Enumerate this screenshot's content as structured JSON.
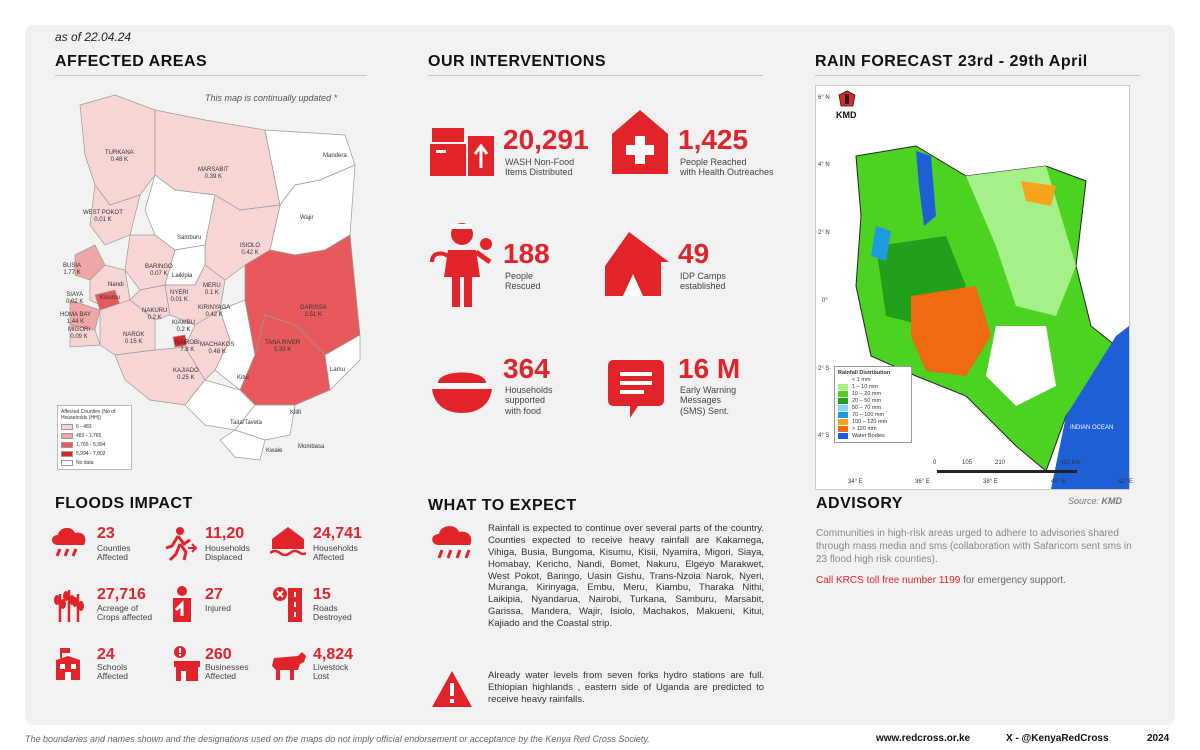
{
  "as_of": "as of 22.04.24",
  "affected": {
    "title": "AFFECTED AREAS",
    "note": "This map is continually updated *",
    "counties": [
      {
        "name": "TURKANA",
        "value": "0.48 K"
      },
      {
        "name": "MARSABIT",
        "value": "0.39 K"
      },
      {
        "name": "Mandera",
        "value": ""
      },
      {
        "name": "WEST POKOT",
        "value": "0.01 K"
      },
      {
        "name": "Samburu",
        "value": ""
      },
      {
        "name": "Wajir",
        "value": ""
      },
      {
        "name": "ISIOLO",
        "value": "0.42 K"
      },
      {
        "name": "BARINGO",
        "value": "0.07 K"
      },
      {
        "name": "Laikipia",
        "value": ""
      },
      {
        "name": "BUSIA",
        "value": "1.77 K"
      },
      {
        "name": "SIAYA",
        "value": "0.02 K"
      },
      {
        "name": "HOMA BAY",
        "value": "1.44 K"
      },
      {
        "name": "MIGORI",
        "value": "0.09 K"
      },
      {
        "name": "NAROK",
        "value": "0.15 K"
      },
      {
        "name": "NAKURU",
        "value": "0.2 K"
      },
      {
        "name": "NYERI",
        "value": "0.01 K"
      },
      {
        "name": "MERU",
        "value": "0.1 K"
      },
      {
        "name": "KIRINYAGA",
        "value": "0.42 K"
      },
      {
        "name": "GARISSA",
        "value": "2.51 K"
      },
      {
        "name": "TANA RIVER",
        "value": "5.33 K"
      },
      {
        "name": "KIAMBU",
        "value": "0.2 K"
      },
      {
        "name": "NAIROBI",
        "value": "7.8 K"
      },
      {
        "name": "MACHAKOS",
        "value": "0.48 K"
      },
      {
        "name": "Kitui",
        "value": ""
      },
      {
        "name": "KAJIADO",
        "value": "0.25 K"
      },
      {
        "name": "Lamu",
        "value": ""
      },
      {
        "name": "Taita/Taveta",
        "value": ""
      },
      {
        "name": "Kilifi",
        "value": ""
      },
      {
        "name": "Kwale",
        "value": ""
      },
      {
        "name": "Mombasa",
        "value": ""
      },
      {
        "name": "Nandi",
        "value": ""
      },
      {
        "name": "Kisumu",
        "value": ""
      }
    ],
    "legend": {
      "title": "Affected Counties (No of Households (HH))",
      "rows": [
        {
          "label": "6 - 483",
          "color": "#f8d5d5"
        },
        {
          "label": "483 - 1,765",
          "color": "#f0a6a6"
        },
        {
          "label": "1,765 - 5,994",
          "color": "#e8595c"
        },
        {
          "label": "5,994 - 7,802",
          "color": "#e0242a"
        },
        {
          "label": "No data",
          "color": "#ffffff"
        }
      ]
    }
  },
  "interventions": {
    "title": "OUR INTERVENTIONS",
    "items": [
      {
        "value": "20,291",
        "label1": "WASH Non-Food",
        "label2": "Items Distributed",
        "label3": "",
        "icon": "wash-nfi-icon"
      },
      {
        "value": "1,425",
        "label1": "People Reached",
        "label2": "with Health Outreaches",
        "label3": "",
        "icon": "health-house-icon"
      },
      {
        "value": "188",
        "label1": "People",
        "label2": "Rescued",
        "label3": "",
        "icon": "rescuer-icon"
      },
      {
        "value": "49",
        "label1": "IDP Camps",
        "label2": "established",
        "label3": "",
        "icon": "tent-icon"
      },
      {
        "value": "364",
        "label1": "Households",
        "label2": "supported",
        "label3": "with food",
        "icon": "food-bowl-icon"
      },
      {
        "value": "16 M",
        "label1": "Early Warning",
        "label2": "Messages",
        "label3": "(SMS) Sent.",
        "icon": "sms-icon"
      }
    ]
  },
  "forecast": {
    "title": "RAIN FORECAST 23rd - 29th April",
    "agency": "KMD",
    "source_prefix": "Source: ",
    "source_name": "KMD",
    "lat_labels": [
      "6° N",
      "4° N",
      "2° N",
      "0°",
      "2° S",
      "4° S"
    ],
    "lon_labels": [
      "34° E",
      "36° E",
      "38° E",
      "40° E",
      "42° E"
    ],
    "scale": [
      "0",
      "105",
      "210",
      "420 Km"
    ],
    "ocean_label": "INDIAN OCEAN",
    "legend_title": "Rainfall Distribution",
    "legend": [
      {
        "label": "< 1 mm",
        "color": "#ffffff"
      },
      {
        "label": "1 – 10 mm",
        "color": "#a6f08a"
      },
      {
        "label": "10 – 20 mm",
        "color": "#4cd321"
      },
      {
        "label": "20 – 50 mm",
        "color": "#22a01b"
      },
      {
        "label": "50 – 70 mm",
        "color": "#7fd6f5"
      },
      {
        "label": "70 – 100 mm",
        "color": "#1e9be0"
      },
      {
        "label": "100 – 120 mm",
        "color": "#f7a31c"
      },
      {
        "label": "> 120 mm",
        "color": "#ef6a10"
      },
      {
        "label": "Water Bodies",
        "color": "#1e5fd6"
      }
    ]
  },
  "floods": {
    "title": "FLOODS IMPACT",
    "items": [
      {
        "value": "23",
        "label1": "Counties",
        "label2": "Affected",
        "icon": "rain-cloud-icon"
      },
      {
        "value": "11,20",
        "label1": "Households",
        "label2": "Displaced",
        "icon": "fleeing-person-icon"
      },
      {
        "value": "24,741",
        "label1": "Households",
        "label2": "Affected",
        "icon": "flooded-house-icon"
      },
      {
        "value": "27,716",
        "label1": "Acreage of",
        "label2": "Crops affected",
        "icon": "crops-icon"
      },
      {
        "value": "27",
        "label1": "Injured",
        "label2": "",
        "icon": "injured-person-icon"
      },
      {
        "value": "15",
        "label1": "Roads",
        "label2": "Destroyed",
        "icon": "road-closed-icon"
      },
      {
        "value": "24",
        "label1": "Schools",
        "label2": "Affected",
        "icon": "school-icon"
      },
      {
        "value": "260",
        "label1": "Businesses",
        "label2": "Affected",
        "icon": "shop-icon"
      },
      {
        "value": "4,824",
        "label1": "Livestock",
        "label2": "Lost",
        "icon": "cow-icon"
      }
    ]
  },
  "expect": {
    "title": "WHAT TO EXPECT",
    "p1": "Rainfall is expected to continue over several parts of the country. Counties expected to receive heavy rainfall are Kakamega, Vihiga, Busia, Bungoma, Kisumu, Kisii, Nyamira, Migori, Siaya, Homabay, Kericho, Nandi, Bomet, Nakuru, Elgeyo Marakwet, West Pokot, Baringo, Uasin Gishu, Trans-Nzoia Narok, Nyeri, Muranga, Kirinyaga, Embu, Meru, Kiambu, Tharaka Nithi, Laikipia, Nyandarua, Nairobi, Turkana, Samburu, Marsabit, Garissa, Mandera, Wajir, Isiolo, Machakos, Makueni, Kitui, Kajiado and the Coastal strip.",
    "p2": "Already water levels from seven forks hydro stations are full. Ethiopian highlands , eastern side of Uganda are predicted to receive heavy rainfalls."
  },
  "advisory": {
    "title": "ADVISORY",
    "text": "Communities in high-risk areas urged to adhere to advisories shared through mass media and sms (collaboration with Safaricom sent sms in 23 flood high risk counties).",
    "call_red": "Call KRCS toll free number 1199",
    "call_rest": " for emergency support."
  },
  "footer": {
    "disclaimer": "The boundaries and names shown and the designations used on the maps do not imply official endorsement or acceptance by the Kenya Red Cross Society.",
    "website": "www.redcross.or.ke",
    "social": "X - @KenyaRedCross",
    "year": "2024"
  },
  "colors": {
    "accent": "#e0242a",
    "panel": "#f2f2f2"
  }
}
